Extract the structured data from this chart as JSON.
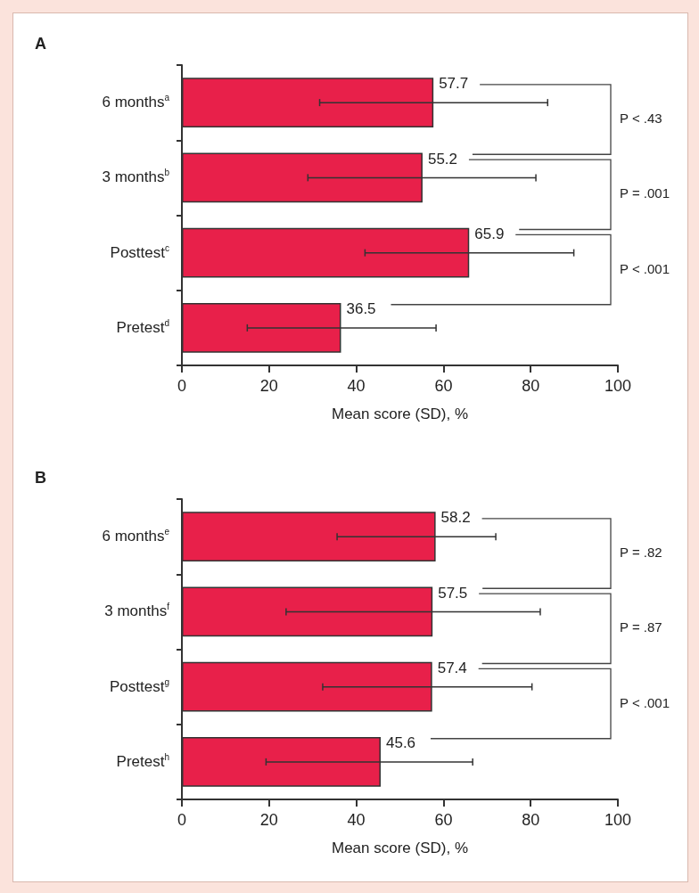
{
  "chart_data": [
    {
      "type": "bar",
      "orientation": "horizontal",
      "title": "A",
      "xlabel": "Mean score (SD), %",
      "categories": [
        "6 months$^{a}$",
        "3 months$^{b}$",
        "Posttest$^{c}$",
        "Pretest$^{d}$"
      ],
      "values": [
        57.7,
        55.2,
        65.9,
        36.5
      ],
      "color": "#e8204a",
      "errors": [
        [
          31.6,
          83.9
        ],
        [
          28.9,
          81.2
        ],
        [
          42.0,
          89.9
        ],
        [
          15.0,
          58.3
        ]
      ],
      "data_labels": true,
      "xlim": [
        0,
        100
      ],
      "xticks": [
        0,
        20,
        40,
        60,
        80,
        100
      ],
      "grid": false,
      "annotations": [
        "P < .43",
        "P = .001",
        "P < .001"
      ]
    },
    {
      "type": "bar",
      "orientation": "horizontal",
      "title": "B",
      "xlabel": "Mean score (SD), %",
      "categories": [
        "6 months$^{e}$",
        "3 months$^{f}$",
        "Posttest$^{g}$",
        "Pretest$^{h}$"
      ],
      "values": [
        58.2,
        57.5,
        57.4,
        45.6
      ],
      "color": "#e8204a",
      "errors": [
        [
          35.6,
          72.0
        ],
        [
          23.9,
          82.2
        ],
        [
          32.3,
          80.3
        ],
        [
          19.3,
          66.7
        ]
      ],
      "data_labels": true,
      "xlim": [
        0,
        100
      ],
      "xticks": [
        0,
        20,
        40,
        60,
        80,
        100
      ],
      "grid": false,
      "annotations": [
        "P = .82",
        "P = .87",
        "P < .001"
      ]
    }
  ]
}
